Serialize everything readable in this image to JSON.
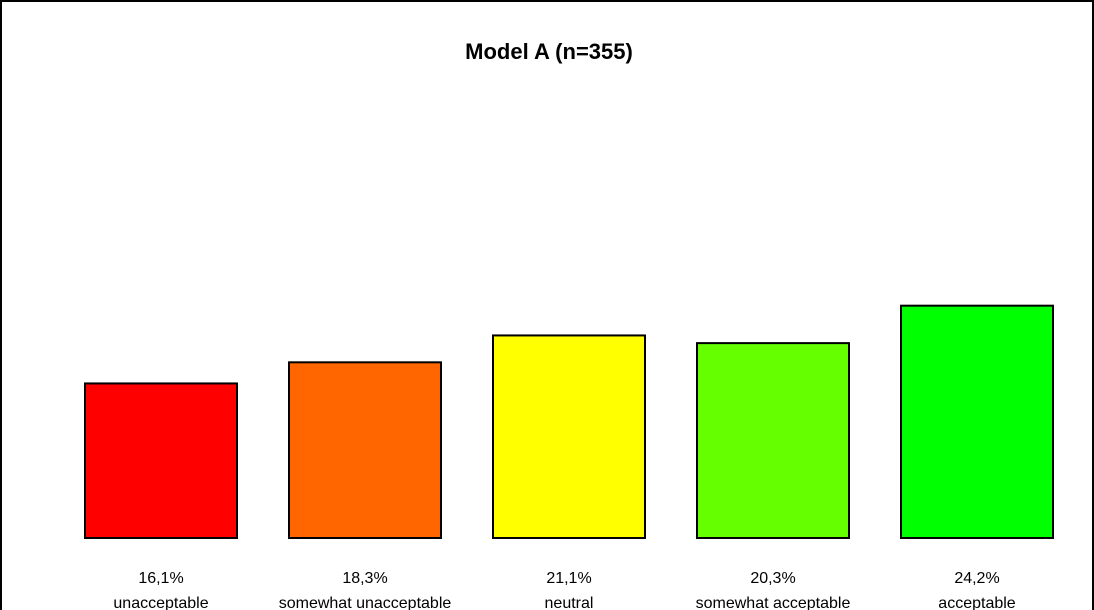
{
  "chart_data": {
    "type": "bar",
    "title": "Model A (n=355)",
    "categories": [
      "unacceptable",
      "somewhat unacceptable",
      "neutral",
      "somewhat acceptable",
      "acceptable"
    ],
    "values": [
      16.1,
      18.3,
      21.1,
      20.3,
      24.2
    ],
    "value_labels": [
      "16,1%",
      "18,3%",
      "21,1%",
      "20,3%",
      "24,2%"
    ],
    "colors": [
      "#FF0000",
      "#FF6600",
      "#FFFF00",
      "#66FF00",
      "#00FF00"
    ],
    "xlabel": "",
    "ylabel": "",
    "ylim": [
      0,
      50
    ],
    "grid": false,
    "legend": "none"
  }
}
